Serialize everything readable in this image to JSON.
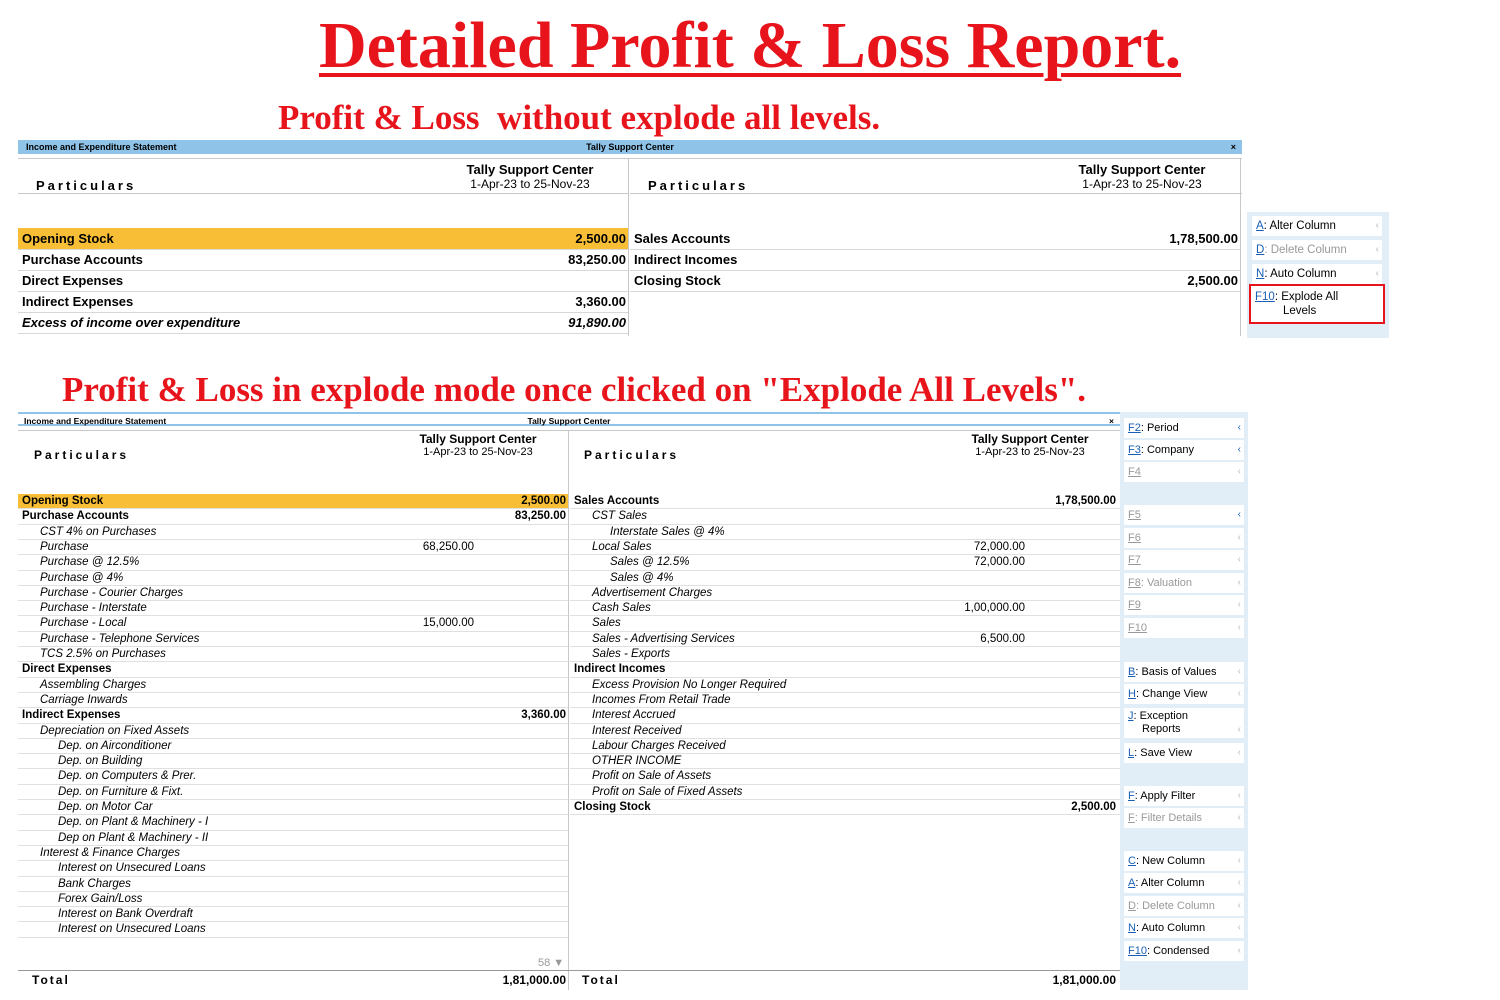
{
  "title": "Detailed Profit & Loss Report.",
  "subtitle1": "Profit & Loss  without explode all levels.",
  "subtitle2": "Profit & Loss in explode mode once clicked on \"Explode All Levels\".",
  "colors": {
    "title_red": "#e8141c",
    "titlebar_blue": "#8fc3e8",
    "highlight": "#f7be36",
    "key_blue": "#1a5fb4"
  },
  "window1": {
    "report_name": "Income and Expenditure Statement",
    "company_title": "Tally Support Center",
    "close": "×",
    "particulars": "Particulars",
    "company": "Tally Support Center",
    "period": "1-Apr-23 to 25-Nov-23",
    "left_rows": [
      {
        "label": "Opening Stock",
        "amount": "2,500.00"
      },
      {
        "label": "Purchase Accounts",
        "amount": "83,250.00"
      },
      {
        "label": "Direct Expenses",
        "amount": ""
      },
      {
        "label": "Indirect Expenses",
        "amount": "3,360.00"
      },
      {
        "label": "Excess of income over expenditure",
        "amount": "91,890.00"
      }
    ],
    "right_rows": [
      {
        "label": "Sales Accounts",
        "amount": "1,78,500.00"
      },
      {
        "label": "Indirect Incomes",
        "amount": ""
      },
      {
        "label": "Closing Stock",
        "amount": "2,500.00"
      }
    ],
    "side_buttons": [
      {
        "key": "A",
        "label": "Alter Column"
      },
      {
        "key": "D",
        "label": "Delete Column"
      },
      {
        "key": "N",
        "label": "Auto Column"
      },
      {
        "key": "F10",
        "label": "Explode All",
        "label2": "Levels"
      }
    ]
  },
  "window2": {
    "report_name": "Income and Expenditure Statement",
    "company_title": "Tally Support Center",
    "close": "×",
    "particulars": "Particulars",
    "company": "Tally Support Center",
    "period": "1-Apr-23 to 25-Nov-23",
    "left_rows": [
      {
        "label": "Opening Stock",
        "amount": "2,500.00"
      },
      {
        "label": "Purchase Accounts",
        "amount": "83,250.00"
      },
      {
        "label": "CST 4% on Purchases"
      },
      {
        "label": "Purchase",
        "sub": "68,250.00"
      },
      {
        "label": "Purchase @ 12.5%"
      },
      {
        "label": "Purchase @ 4%"
      },
      {
        "label": "Purchase - Courier Charges"
      },
      {
        "label": "Purchase - Interstate"
      },
      {
        "label": "Purchase - Local",
        "sub": "15,000.00"
      },
      {
        "label": "Purchase - Telephone Services"
      },
      {
        "label": "TCS 2.5% on Purchases"
      },
      {
        "label": "Direct Expenses"
      },
      {
        "label": "Assembling Charges"
      },
      {
        "label": "Carriage Inwards"
      },
      {
        "label": "Indirect Expenses",
        "amount": "3,360.00"
      },
      {
        "label": "Depreciation on Fixed Assets"
      },
      {
        "label": "Dep. on Airconditioner"
      },
      {
        "label": "Dep. on  Building"
      },
      {
        "label": "Dep. on Computers & Prer."
      },
      {
        "label": "Dep. on Furniture & Fixt."
      },
      {
        "label": "Dep. on Motor Car"
      },
      {
        "label": "Dep. on Plant & Machinery - I"
      },
      {
        "label": "Dep on Plant & Machinery - II"
      },
      {
        "label": "Interest & Finance Charges"
      },
      {
        "label": "Interest on Unsecured Loans"
      },
      {
        "label": "Bank Charges"
      },
      {
        "label": "Forex Gain/Loss"
      },
      {
        "label": "Interest on Bank Overdraft"
      },
      {
        "label": "Interest on Unsecured Loans"
      }
    ],
    "right_rows": [
      {
        "label": "Sales Accounts",
        "amount": "1,78,500.00"
      },
      {
        "label": "CST Sales"
      },
      {
        "label": "Interstate Sales @ 4%"
      },
      {
        "label": "Local Sales",
        "sub": "72,000.00"
      },
      {
        "label": "Sales @ 12.5%",
        "sub": "72,000.00"
      },
      {
        "label": "Sales @ 4%"
      },
      {
        "label": "Advertisement Charges"
      },
      {
        "label": "Cash Sales",
        "sub": "1,00,000.00"
      },
      {
        "label": "Sales"
      },
      {
        "label": "Sales - Advertising Services",
        "sub": "6,500.00"
      },
      {
        "label": "Sales - Exports"
      },
      {
        "label": "Indirect Incomes"
      },
      {
        "label": "Excess Provision No Longer Required"
      },
      {
        "label": "Incomes From Retail Trade"
      },
      {
        "label": "Interest Accrued"
      },
      {
        "label": "Interest Received"
      },
      {
        "label": "Labour Charges Received"
      },
      {
        "label": "OTHER INCOME"
      },
      {
        "label": "Profit on Sale of Assets"
      },
      {
        "label": "Profit on Sale of Fixed Assets"
      },
      {
        "label": "Closing Stock",
        "amount": "2,500.00"
      }
    ],
    "page_count": "58 ▼",
    "total_label": "Total",
    "left_total": "1,81,000.00",
    "right_total": "1,81,000.00",
    "side_buttons": [
      {
        "key": "F2",
        "label": "Period"
      },
      {
        "key": "F3",
        "label": "Company"
      },
      {
        "key": "F4",
        "label": ""
      },
      {
        "key": "F5",
        "label": ""
      },
      {
        "key": "F6",
        "label": ""
      },
      {
        "key": "F7",
        "label": ""
      },
      {
        "key": "F8",
        "label": "Valuation"
      },
      {
        "key": "F9",
        "label": ""
      },
      {
        "key": "F10",
        "label": ""
      },
      {
        "key": "B",
        "label": "Basis of Values"
      },
      {
        "key": "H",
        "label": "Change View"
      },
      {
        "key": "J",
        "label": "Exception",
        "label2": "Reports"
      },
      {
        "key": "L",
        "label": "Save View"
      },
      {
        "key": "F",
        "label": "Apply Filter"
      },
      {
        "key": "F",
        "label": "Filter Details"
      },
      {
        "key": "C",
        "label": "New Column"
      },
      {
        "key": "A",
        "label": "Alter Column"
      },
      {
        "key": "D",
        "label": "Delete Column"
      },
      {
        "key": "N",
        "label": "Auto Column"
      },
      {
        "key": "F10",
        "label": "Condensed"
      }
    ]
  }
}
